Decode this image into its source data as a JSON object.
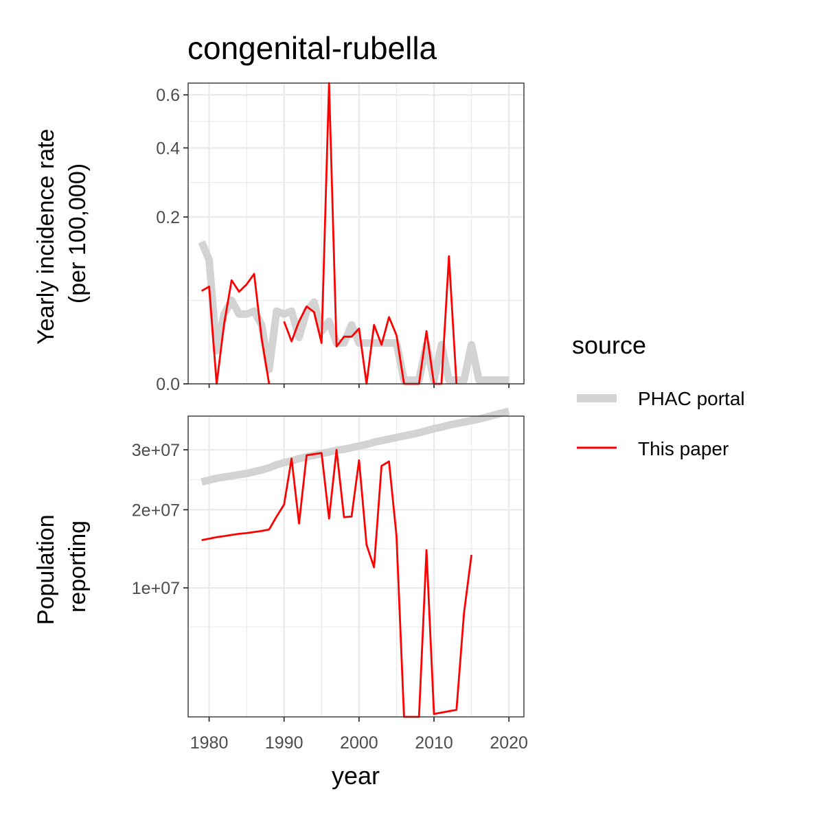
{
  "chart_data": {
    "type": "line",
    "title": "congenital-rubella",
    "xlabel": "year",
    "xlim": [
      1977.2,
      2022.0
    ],
    "x_ticks": [
      "1980",
      "1990",
      "2000",
      "2010",
      "2020"
    ],
    "legend": {
      "title": "source",
      "placement": "right",
      "entries": [
        {
          "name": "PHAC portal",
          "color": "#d3d3d3"
        },
        {
          "name": "This paper",
          "color": "#ff0000"
        }
      ]
    },
    "grid": true,
    "panels": [
      {
        "id": "incidence",
        "ylabel_lines": [
          "Yearly incidence rate",
          "(per 100,000)"
        ],
        "y_scale": "sqrt",
        "ylim": [
          0,
          0.65
        ],
        "y_ticks": [
          {
            "value": 0.0,
            "label": "0.0"
          },
          {
            "value": 0.2,
            "label": "0.2"
          },
          {
            "value": 0.4,
            "label": "0.4"
          },
          {
            "value": 0.6,
            "label": "0.6"
          }
        ],
        "series": [
          {
            "name": "PHAC portal",
            "x": [
              1979,
              1980,
              1981,
              1982,
              1983,
              1984,
              1985,
              1986,
              1987,
              1988,
              1989,
              1990,
              1991,
              1992,
              1993,
              1994,
              1995,
              1996,
              1997,
              1998,
              1999,
              2000,
              2001,
              2002,
              2003,
              2004,
              2005,
              2006,
              2007,
              2008,
              2009,
              2010,
              2011,
              2012,
              2013,
              2014,
              2015,
              2016,
              2017,
              2018,
              2019,
              2020
            ],
            "y": [
              0.145,
              0.11,
              0.008,
              0.035,
              0.05,
              0.035,
              0.035,
              0.038,
              0.025,
              0.0015,
              0.038,
              0.035,
              0.038,
              0.0155,
              0.038,
              0.048,
              0.02,
              0.028,
              0.012,
              0.012,
              0.025,
              0.012,
              0.012,
              0.012,
              0.012,
              0.012,
              0.012,
              0.0001,
              0.0001,
              0.0001,
              0.011,
              0.0001,
              0.011,
              0.0001,
              0.0001,
              0.0001,
              0.011,
              0.0001,
              0.0001,
              0.0001,
              0.0001,
              0.0001
            ]
          },
          {
            "name": "This paper",
            "x": [
              1979,
              1980,
              1981,
              1982,
              1983,
              1984,
              1985,
              1986,
              1987,
              1988,
              null,
              1990,
              1991,
              1992,
              1993,
              1994,
              1995,
              1996,
              1997,
              1998,
              1999,
              2000,
              2001,
              2002,
              2003,
              2004,
              2005,
              2006,
              2007,
              2008,
              2009,
              2010,
              2011,
              2012,
              2013
            ],
            "y": [
              0.062,
              0.068,
              0.0,
              0.026,
              0.077,
              0.061,
              0.071,
              0.087,
              0.015,
              0.0,
              null,
              0.028,
              0.013,
              0.028,
              0.043,
              0.037,
              0.012,
              0.65,
              0.01,
              0.016,
              0.016,
              0.022,
              0.0,
              0.025,
              0.011,
              0.032,
              0.017,
              0.0,
              0.0,
              0.0,
              0.02,
              0.0,
              0.0,
              0.117,
              0.0
            ]
          }
        ]
      },
      {
        "id": "population",
        "ylabel_lines": [
          "Population",
          "reporting"
        ],
        "y_scale": "sqrt",
        "ylim": [
          1000000,
          36500000
        ],
        "y_ticks": [
          {
            "value": 10000000,
            "label": "1e+07"
          },
          {
            "value": 20000000,
            "label": "2e+07"
          },
          {
            "value": 30000000,
            "label": "3e+07"
          }
        ],
        "series": [
          {
            "name": "PHAC portal",
            "x": [
              1979,
              1980,
              1981,
              1982,
              1983,
              1984,
              1985,
              1986,
              1987,
              1988,
              1989,
              1990,
              1991,
              1992,
              1993,
              1994,
              1995,
              1996,
              1997,
              1998,
              1999,
              2000,
              2001,
              2002,
              2003,
              2004,
              2005,
              2006,
              2007,
              2008,
              2009,
              2010,
              2011,
              2012,
              2013,
              2014,
              2015,
              2016,
              2017,
              2018,
              2019,
              2020
            ],
            "y": [
              24400000,
              24700000,
              25000000,
              25200000,
              25400000,
              25600000,
              25800000,
              26100000,
              26400000,
              26800000,
              27300000,
              27700000,
              28000000,
              28400000,
              28700000,
              29000000,
              29300000,
              29600000,
              29900000,
              30100000,
              30400000,
              30700000,
              31000000,
              31400000,
              31700000,
              32000000,
              32300000,
              32600000,
              32900000,
              33200000,
              33600000,
              34000000,
              34300000,
              34700000,
              35000000,
              35300000,
              35600000,
              35900000,
              36300000,
              36700000,
              37100000,
              37500000
            ]
          },
          {
            "name": "This paper",
            "x": [
              1979,
              1980,
              1981,
              1982,
              1983,
              1984,
              1985,
              1986,
              1987,
              1988,
              1989,
              1990,
              1991,
              1992,
              1993,
              1994,
              1995,
              1996,
              1997,
              1998,
              1999,
              2000,
              2001,
              2002,
              2003,
              2004,
              2005,
              2006,
              2007,
              2008,
              2009,
              2010,
              2011,
              2012,
              2013,
              2014,
              2015
            ],
            "y": [
              15700000,
              15900000,
              16100000,
              16250000,
              16400000,
              16550000,
              16650000,
              16800000,
              16950000,
              17150000,
              19000000,
              20800000,
              28400000,
              18000000,
              29000000,
              29200000,
              29400000,
              18700000,
              30000000,
              18900000,
              19000000,
              28100000,
              15100000,
              12300000,
              27100000,
              27900000,
              16300000,
              1000000,
              1000000,
              1000000,
              14400000,
              1100000,
              1150000,
              1200000,
              1250000,
              7500000,
              13800000
            ]
          }
        ]
      }
    ]
  }
}
